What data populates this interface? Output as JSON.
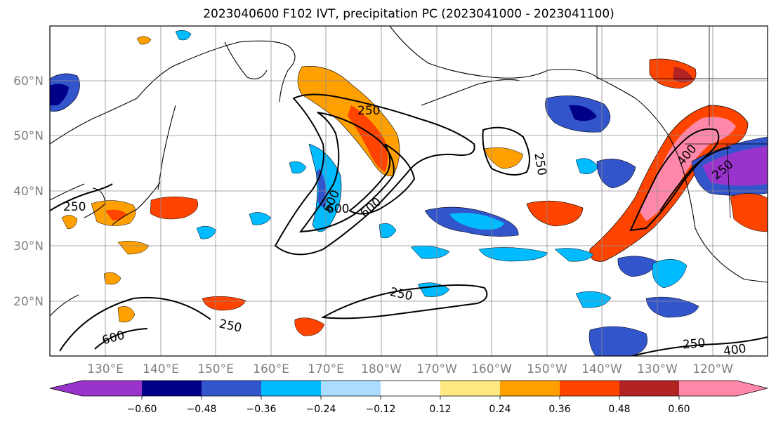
{
  "title": "2023040600 F102 IVT, precipitation PC (2023041000 - 2023041100)",
  "map": {
    "lat_ticks": [
      "60°N",
      "50°N",
      "40°N",
      "30°N",
      "20°N"
    ],
    "lon_ticks": [
      "130°E",
      "140°E",
      "150°E",
      "160°E",
      "170°E",
      "180°W",
      "170°W",
      "160°W",
      "150°W",
      "140°W",
      "130°W",
      "120°W"
    ],
    "contour_labels": [
      "250",
      "250",
      "250",
      "600",
      "600",
      "600",
      "400",
      "250",
      "250",
      "600",
      "250",
      "250",
      "400"
    ]
  },
  "colorbar": {
    "tick_labels": [
      "−0.60",
      "−0.48",
      "−0.36",
      "−0.24",
      "−0.12",
      "0.12",
      "0.24",
      "0.36",
      "0.48",
      "0.60"
    ],
    "colors": [
      "#9933cc",
      "#000088",
      "#3355cc",
      "#00bbff",
      "#aaddff",
      "#ffffff",
      "#ffe880",
      "#ffa000",
      "#ff4400",
      "#b22222",
      "#ff88aa"
    ]
  }
}
